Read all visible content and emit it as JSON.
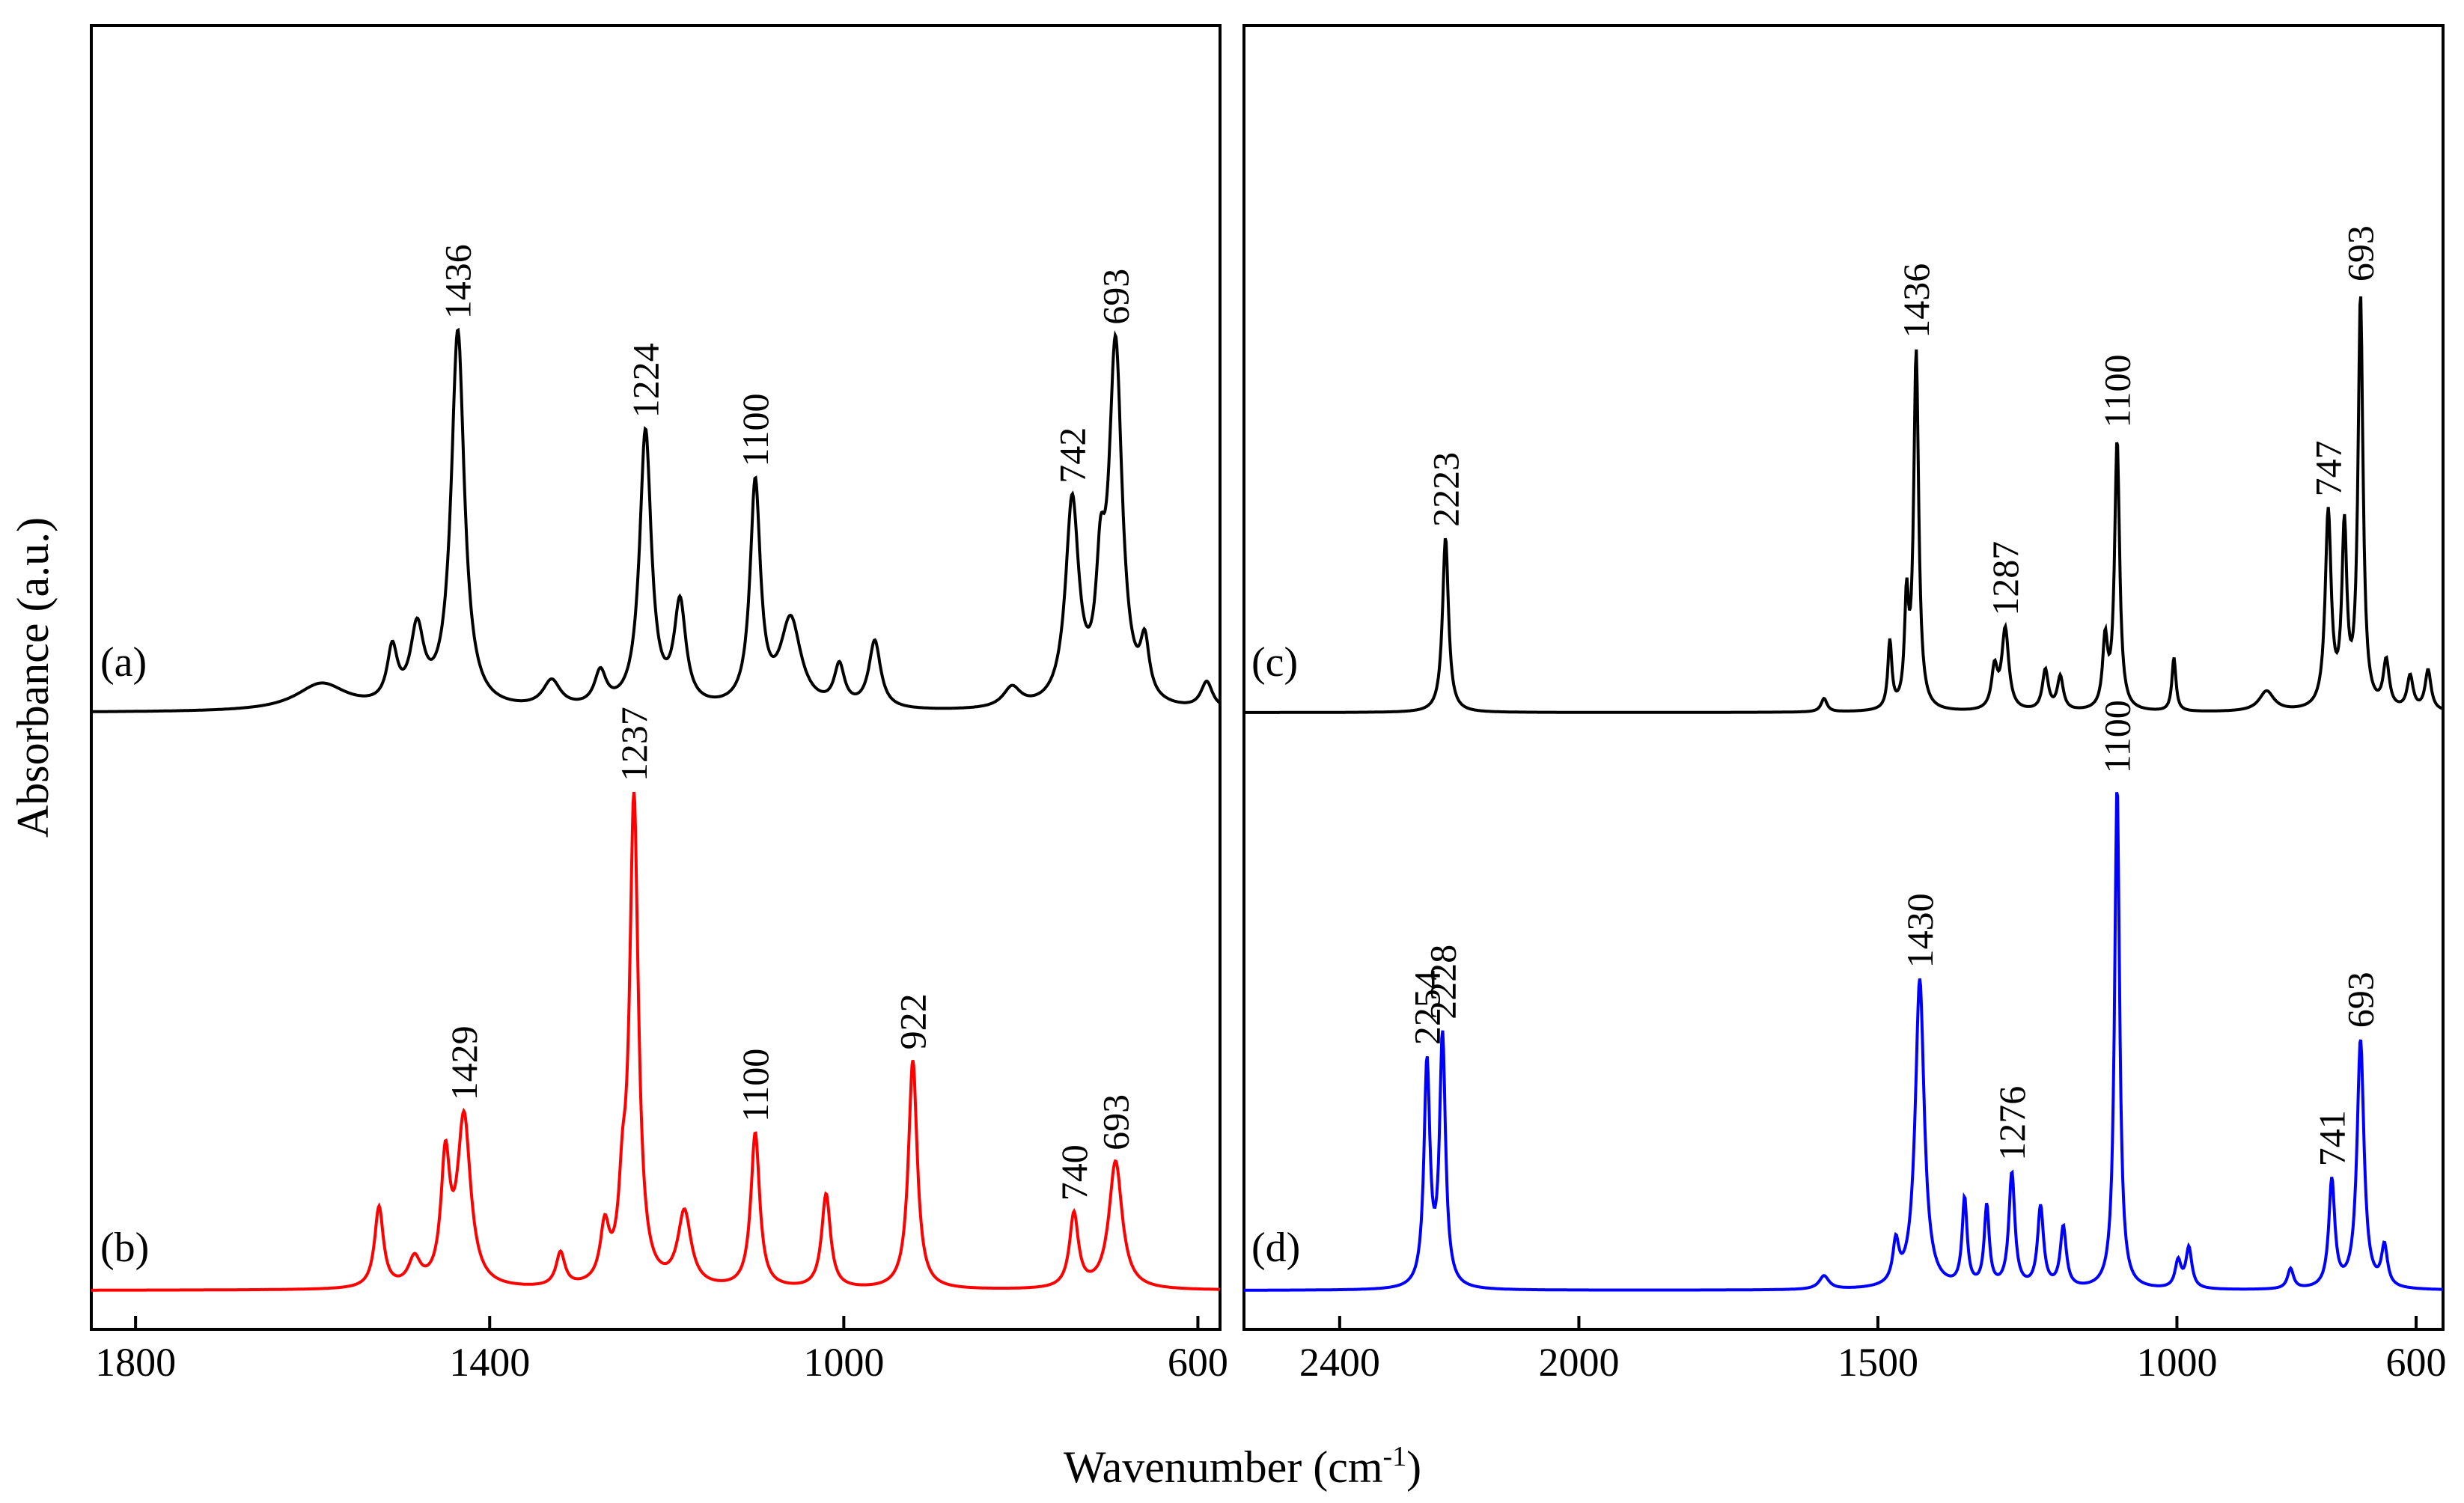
{
  "figure": {
    "ylabel": "Absorbance (a.u.)",
    "xlabel_main": "Wavenumber (cm",
    "xlabel_sup": "-1",
    "xlabel_close": ")"
  },
  "chart_data": [
    {
      "type": "line",
      "panel": "left",
      "xlim": [
        1850,
        575
      ],
      "x_reversed": true,
      "xticks": [
        "1800",
        "1400",
        "1000",
        "600"
      ],
      "xtick_values": [
        1800,
        1400,
        1000,
        600
      ],
      "series": [
        {
          "name": "(a)",
          "color": "#000000",
          "baseline": 0.0,
          "peaks": [
            {
              "x": 1436,
              "h": 0.56,
              "w": 9,
              "label": "1436"
            },
            {
              "x": 1224,
              "h": 0.41,
              "w": 8,
              "label": "1224"
            },
            {
              "x": 1100,
              "h": 0.33,
              "w": 7,
              "label": "1100"
            },
            {
              "x": 742,
              "h": 0.3,
              "w": 9,
              "label": "742"
            },
            {
              "x": 693,
              "h": 0.53,
              "w": 9,
              "label": "693"
            },
            {
              "x": 1482,
              "h": 0.11,
              "w": 9
            },
            {
              "x": 1510,
              "h": 0.08,
              "w": 7
            },
            {
              "x": 1185,
              "h": 0.15,
              "w": 8
            },
            {
              "x": 1060,
              "h": 0.13,
              "w": 14
            },
            {
              "x": 965,
              "h": 0.1,
              "w": 8
            },
            {
              "x": 1005,
              "h": 0.06,
              "w": 7
            },
            {
              "x": 1275,
              "h": 0.05,
              "w": 8
            },
            {
              "x": 1330,
              "h": 0.04,
              "w": 12
            },
            {
              "x": 710,
              "h": 0.15,
              "w": 6
            },
            {
              "x": 660,
              "h": 0.08,
              "w": 6
            },
            {
              "x": 590,
              "h": 0.04,
              "w": 8
            },
            {
              "x": 1590,
              "h": 0.04,
              "w": 35
            },
            {
              "x": 810,
              "h": 0.03,
              "w": 12
            }
          ]
        },
        {
          "name": "(b)",
          "color": "#ff0000",
          "baseline": 0.0,
          "peaks": [
            {
              "x": 1429,
              "h": 0.25,
              "w": 9,
              "label": "1429"
            },
            {
              "x": 1237,
              "h": 0.72,
              "w": 6,
              "label": "1237"
            },
            {
              "x": 1100,
              "h": 0.23,
              "w": 6,
              "label": "1100"
            },
            {
              "x": 922,
              "h": 0.34,
              "w": 6,
              "label": "922"
            },
            {
              "x": 740,
              "h": 0.11,
              "w": 6,
              "label": "740"
            },
            {
              "x": 693,
              "h": 0.19,
              "w": 9,
              "label": "693"
            },
            {
              "x": 1525,
              "h": 0.12,
              "w": 6
            },
            {
              "x": 1450,
              "h": 0.18,
              "w": 6
            },
            {
              "x": 1485,
              "h": 0.04,
              "w": 8
            },
            {
              "x": 1180,
              "h": 0.11,
              "w": 9
            },
            {
              "x": 1020,
              "h": 0.14,
              "w": 6
            },
            {
              "x": 1320,
              "h": 0.05,
              "w": 6
            },
            {
              "x": 1270,
              "h": 0.08,
              "w": 6
            },
            {
              "x": 1250,
              "h": 0.1,
              "w": 5
            }
          ]
        }
      ]
    },
    {
      "type": "line",
      "panel": "right",
      "xlim": [
        2560,
        555
      ],
      "x_reversed": true,
      "xticks": [
        "2400",
        "2000",
        "1500",
        "1000",
        "600"
      ],
      "xtick_values": [
        2400,
        2000,
        1500,
        1000,
        600
      ],
      "series": [
        {
          "name": "(c)",
          "color": "#000000",
          "baseline": 0.0,
          "peaks": [
            {
              "x": 2223,
              "h": 0.26,
              "w": 6,
              "label": "2223"
            },
            {
              "x": 1436,
              "h": 0.53,
              "w": 5,
              "label": "1436"
            },
            {
              "x": 1287,
              "h": 0.12,
              "w": 7,
              "label": "1287"
            },
            {
              "x": 1100,
              "h": 0.4,
              "w": 5,
              "label": "1100"
            },
            {
              "x": 747,
              "h": 0.29,
              "w": 6,
              "label": "747"
            },
            {
              "x": 693,
              "h": 0.61,
              "w": 5,
              "label": "693"
            },
            {
              "x": 1480,
              "h": 0.1,
              "w": 4
            },
            {
              "x": 1452,
              "h": 0.15,
              "w": 4
            },
            {
              "x": 1305,
              "h": 0.06,
              "w": 6
            },
            {
              "x": 1220,
              "h": 0.06,
              "w": 6
            },
            {
              "x": 1195,
              "h": 0.05,
              "w": 6
            },
            {
              "x": 1120,
              "h": 0.1,
              "w": 5
            },
            {
              "x": 1005,
              "h": 0.08,
              "w": 4
            },
            {
              "x": 720,
              "h": 0.26,
              "w": 5
            },
            {
              "x": 650,
              "h": 0.07,
              "w": 6
            },
            {
              "x": 610,
              "h": 0.05,
              "w": 6
            },
            {
              "x": 580,
              "h": 0.06,
              "w": 6
            },
            {
              "x": 1590,
              "h": 0.02,
              "w": 6
            },
            {
              "x": 850,
              "h": 0.03,
              "w": 15
            }
          ]
        },
        {
          "name": "(d)",
          "color": "#0000ff",
          "baseline": 0.0,
          "peaks": [
            {
              "x": 2254,
              "h": 0.33,
              "w": 6,
              "label": "2254"
            },
            {
              "x": 2228,
              "h": 0.37,
              "w": 6,
              "label": "2228"
            },
            {
              "x": 1430,
              "h": 0.46,
              "w": 9,
              "label": "1430"
            },
            {
              "x": 1276,
              "h": 0.17,
              "w": 6,
              "label": "1276"
            },
            {
              "x": 1100,
              "h": 0.75,
              "w": 5,
              "label": "1100"
            },
            {
              "x": 741,
              "h": 0.16,
              "w": 6,
              "label": "741"
            },
            {
              "x": 693,
              "h": 0.37,
              "w": 7,
              "label": "693"
            },
            {
              "x": 1470,
              "h": 0.06,
              "w": 6
            },
            {
              "x": 1355,
              "h": 0.13,
              "w": 5
            },
            {
              "x": 1318,
              "h": 0.12,
              "w": 5
            },
            {
              "x": 1228,
              "h": 0.12,
              "w": 6
            },
            {
              "x": 1190,
              "h": 0.09,
              "w": 6
            },
            {
              "x": 998,
              "h": 0.04,
              "w": 6
            },
            {
              "x": 980,
              "h": 0.06,
              "w": 6
            },
            {
              "x": 810,
              "h": 0.03,
              "w": 6
            },
            {
              "x": 653,
              "h": 0.06,
              "w": 6
            },
            {
              "x": 1590,
              "h": 0.02,
              "w": 10
            }
          ]
        }
      ]
    }
  ]
}
